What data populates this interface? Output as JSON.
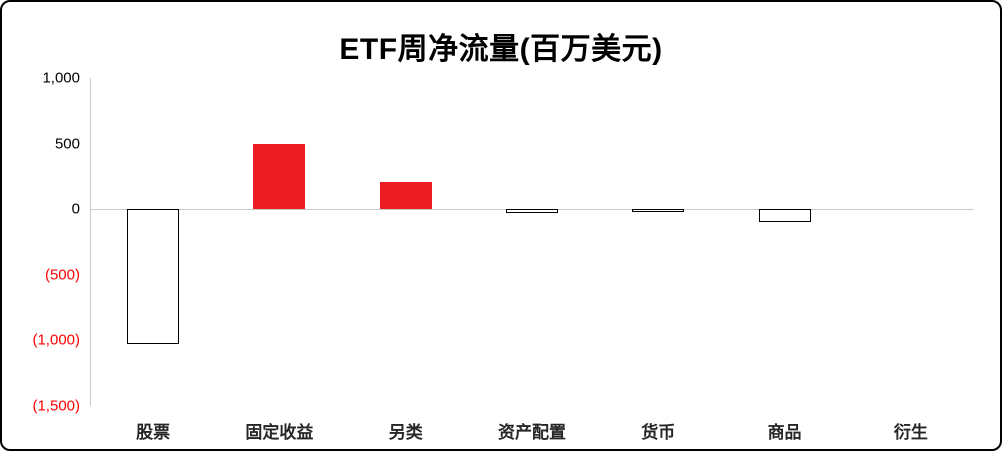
{
  "chart_data": {
    "type": "bar",
    "title": "ETF周净流量(百万美元)",
    "categories": [
      "股票",
      "固定收益",
      "另类",
      "资产配置",
      "货币",
      "商品",
      "衍生"
    ],
    "values": [
      -1030,
      500,
      210,
      -28,
      -18,
      -100,
      0
    ],
    "xlabel": "",
    "ylabel": "",
    "ylim": [
      -1500,
      1000
    ],
    "yticks": [
      1000,
      500,
      0,
      -500,
      -1000,
      -1500
    ],
    "ytick_labels": [
      "1,000",
      "500",
      "0",
      "(500)",
      "(1,000)",
      "(1,500)"
    ],
    "grid": false,
    "legend_position": "none",
    "colors": {
      "positive_bar": "#ed1c24",
      "negative_bar_fill": "#ffffff",
      "negative_bar_border": "#000000",
      "positive_tick_label": "#000000",
      "negative_tick_label": "#ff0000",
      "axis_line": "#c9c9c9",
      "category_label": "#262626"
    }
  }
}
